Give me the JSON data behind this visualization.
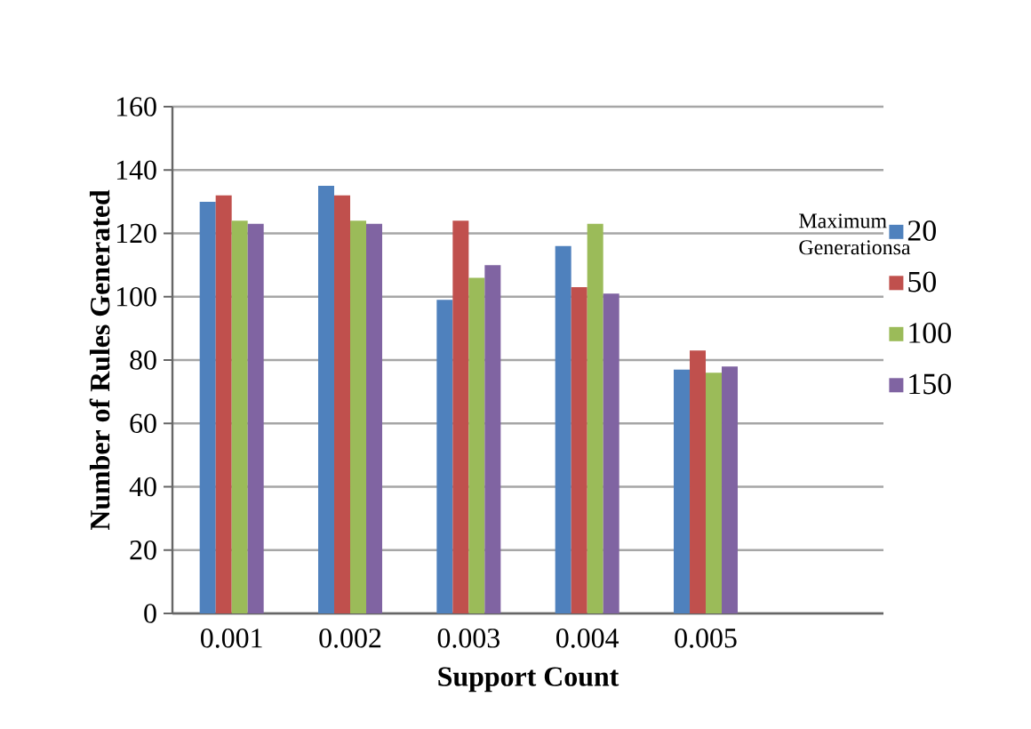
{
  "chart_data": {
    "type": "bar",
    "xlabel": "Support Count",
    "ylabel": "Number of Rules Generated",
    "legend_title": "Maximum Generationsa",
    "categories": [
      "0.001",
      "0.002",
      "0.003",
      "0.004",
      "0.005",
      null
    ],
    "series": [
      {
        "name": "20",
        "color": "#4f81bd",
        "values": [
          130,
          135,
          99,
          116,
          77,
          null
        ]
      },
      {
        "name": "50",
        "color": "#c0504d",
        "values": [
          132,
          132,
          124,
          103,
          83,
          null
        ]
      },
      {
        "name": "100",
        "color": "#9bbb59",
        "values": [
          124,
          124,
          106,
          123,
          76,
          null
        ]
      },
      {
        "name": "150",
        "color": "#8064a2",
        "values": [
          123,
          123,
          110,
          101,
          78,
          null
        ]
      }
    ],
    "ylim": [
      0,
      160
    ],
    "yticks": [
      0,
      20,
      40,
      60,
      80,
      100,
      120,
      140,
      160
    ],
    "grid": "y",
    "legend": "right"
  }
}
